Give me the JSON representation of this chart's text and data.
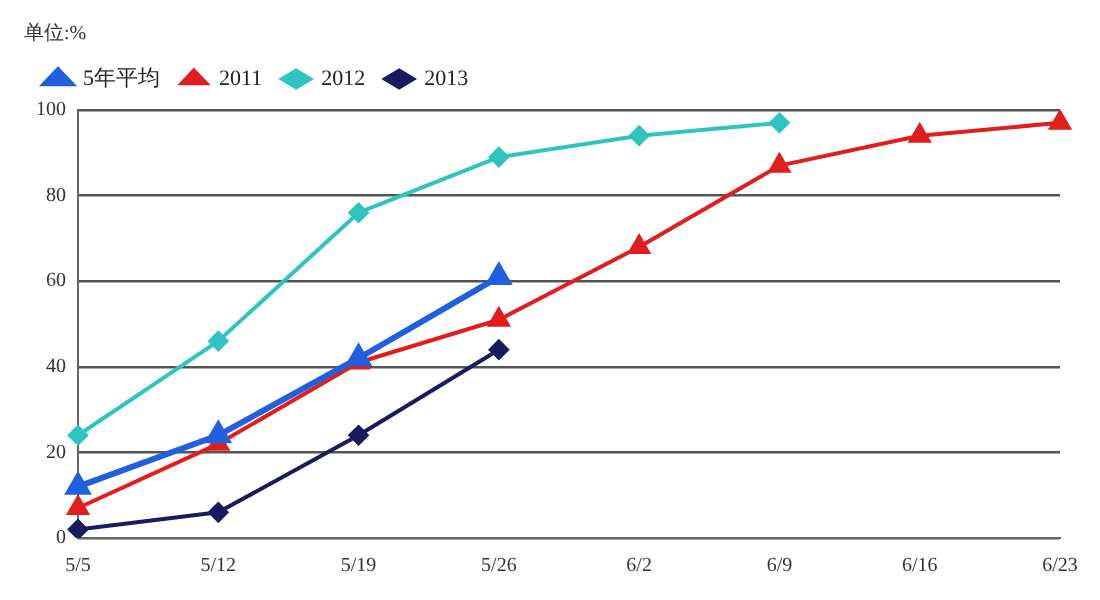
{
  "chart_data": {
    "type": "line",
    "ylabel": "单位:%",
    "categories": [
      "5/5",
      "5/12",
      "5/19",
      "5/26",
      "6/2",
      "6/9",
      "6/16",
      "6/23"
    ],
    "series": [
      {
        "name": "2013",
        "color": "#1a1a5e",
        "marker": "diamond",
        "values": [
          2,
          6,
          24,
          44,
          null,
          null,
          null,
          null
        ]
      },
      {
        "name": "2012",
        "color": "#2ec4c0",
        "marker": "diamond",
        "values": [
          24,
          46,
          76,
          89,
          94,
          97,
          null,
          null
        ]
      },
      {
        "name": "2011",
        "color": "#e01e1e",
        "marker": "triangle",
        "values": [
          7,
          22,
          41,
          51,
          68,
          87,
          94,
          97
        ]
      },
      {
        "name": "5年平均",
        "color": "#1f5fe0",
        "marker": "triangle",
        "values": [
          12,
          24,
          42,
          61,
          null,
          null,
          null,
          null
        ]
      }
    ],
    "ylim": [
      0,
      100
    ],
    "yticks": [
      0,
      20,
      40,
      60,
      80,
      100
    ],
    "grid": "y",
    "legend": "top left"
  }
}
